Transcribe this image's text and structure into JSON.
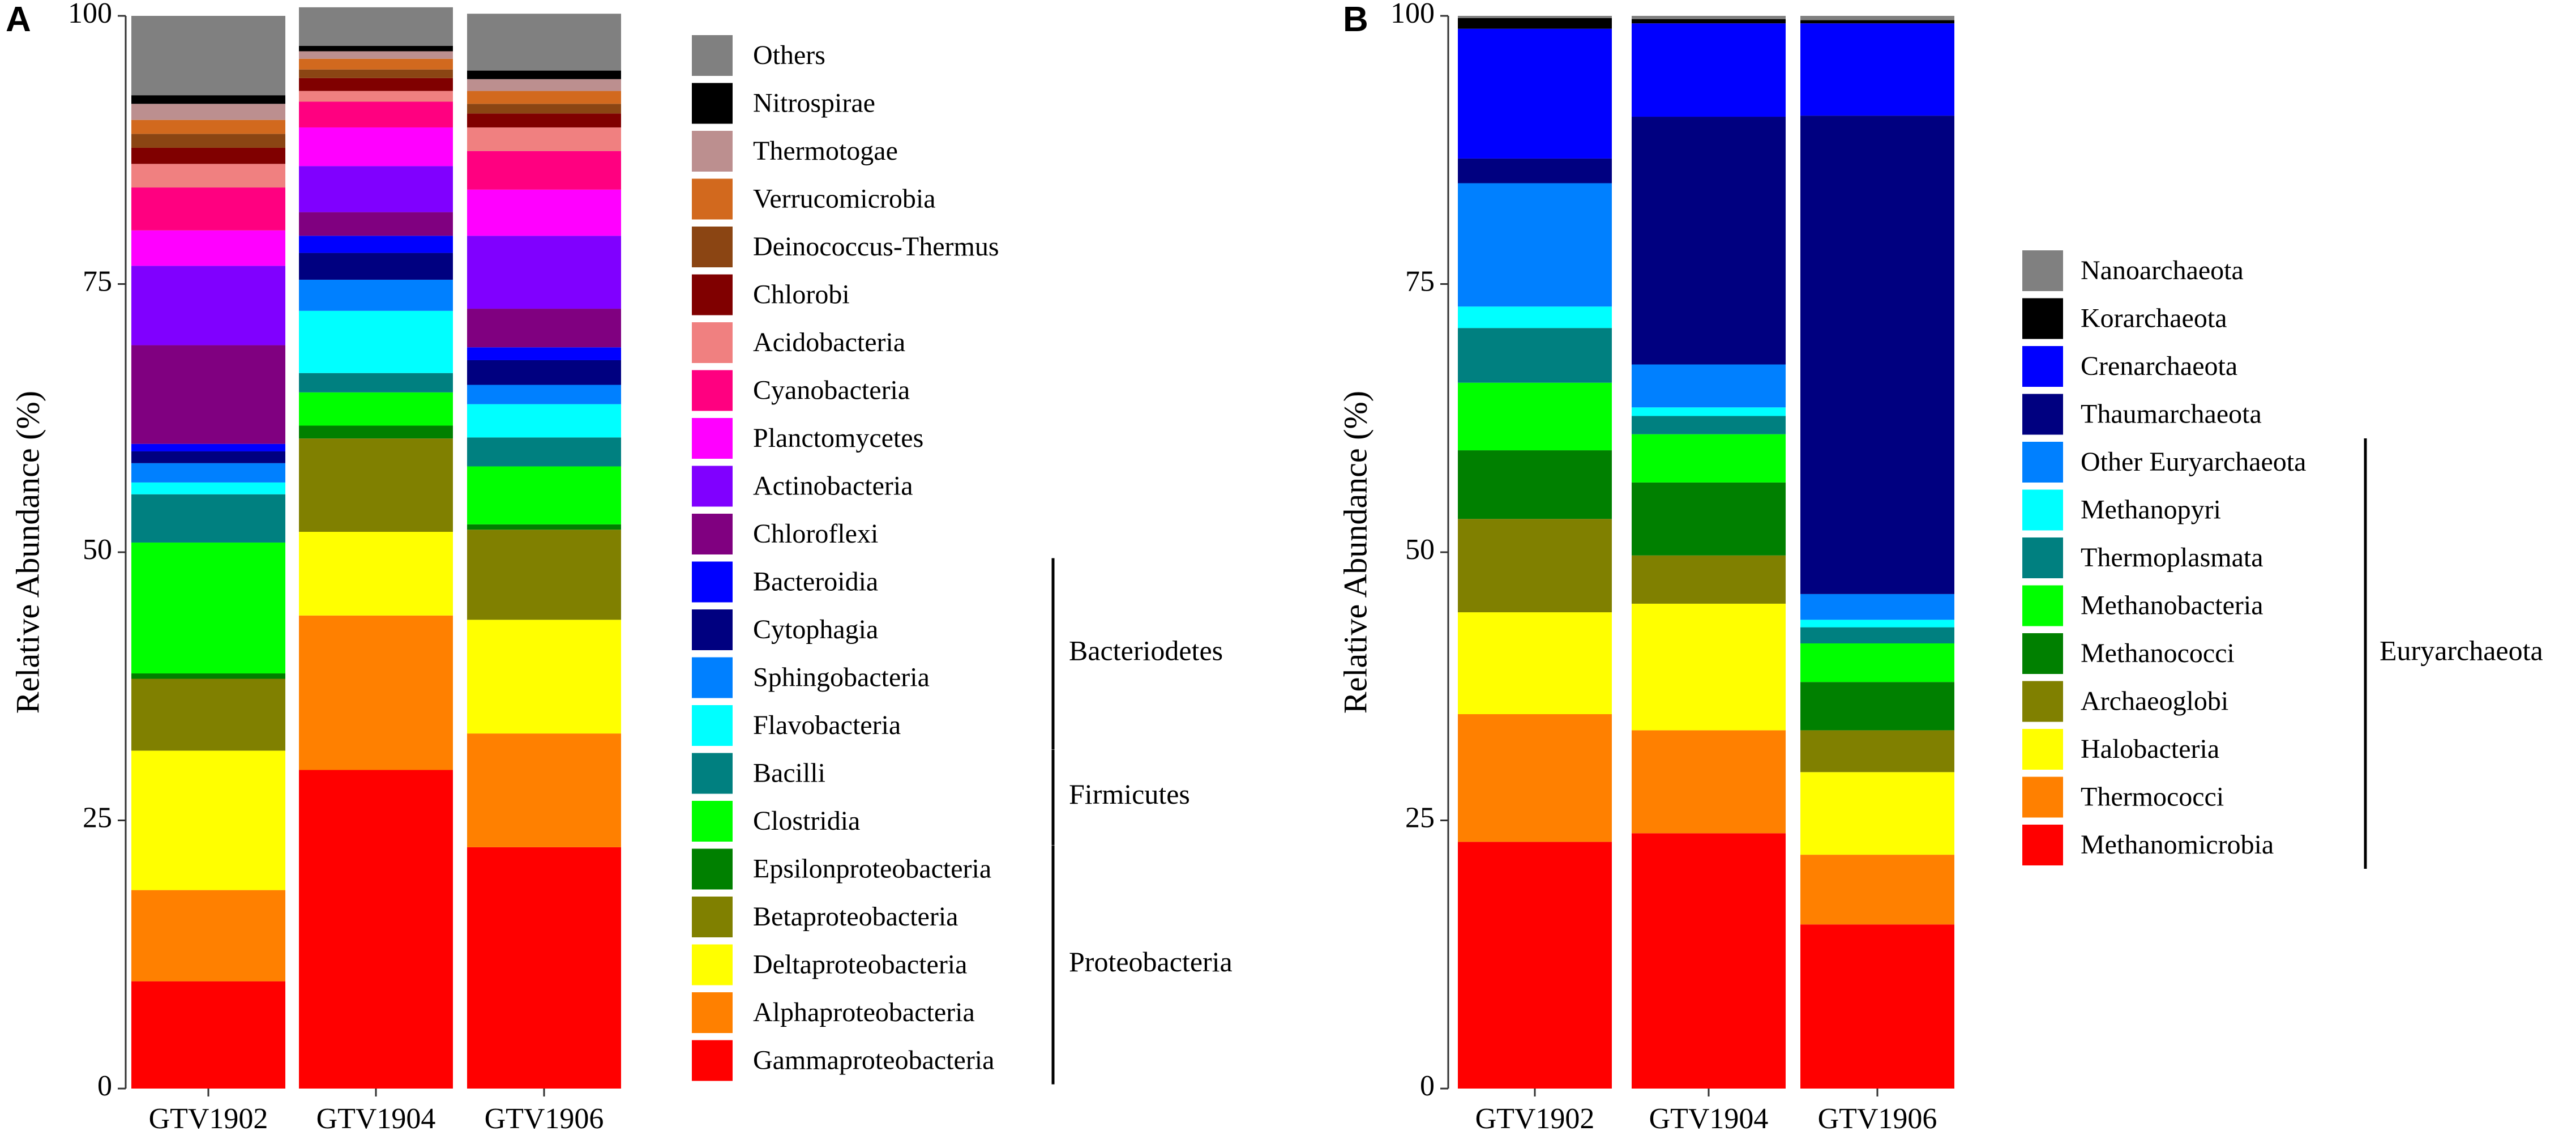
{
  "chart_data": [
    {
      "type": "bar",
      "stacked": true,
      "panel_label": "A",
      "ylabel": "Relative Abundance (%)",
      "ylim": [
        0,
        100
      ],
      "yticks": [
        0,
        25,
        50,
        75,
        100
      ],
      "categories": [
        "GTV1902",
        "GTV1904",
        "GTV1906"
      ],
      "series": [
        {
          "name": "Gammaproteobacteria",
          "color": "#FF0000",
          "values": [
            10,
            29.7,
            22.5
          ]
        },
        {
          "name": "Alphaproteobacteria",
          "color": "#FF8000",
          "values": [
            8.5,
            14.4,
            10.6
          ]
        },
        {
          "name": "Deltaproteobacteria",
          "color": "#FFFF00",
          "values": [
            13,
            7.8,
            10.6
          ]
        },
        {
          "name": "Betaproteobacteria",
          "color": "#808000",
          "values": [
            6.7,
            8.7,
            8.4
          ]
        },
        {
          "name": "Epsilonproteobacteria",
          "color": "#008000",
          "values": [
            0.5,
            1.2,
            0.5
          ]
        },
        {
          "name": "Clostridia",
          "color": "#00FF00",
          "values": [
            12.2,
            3.1,
            5.4
          ]
        },
        {
          "name": "Bacilli",
          "color": "#008080",
          "values": [
            4.5,
            1.8,
            2.7
          ]
        },
        {
          "name": "Flavobacteria",
          "color": "#00FFFF",
          "values": [
            1.1,
            5.8,
            3.1
          ]
        },
        {
          "name": "Sphingobacteria",
          "color": "#0080FF",
          "values": [
            1.8,
            2.9,
            1.8
          ]
        },
        {
          "name": "Cytophagia",
          "color": "#000080",
          "values": [
            1.1,
            2.5,
            2.3
          ]
        },
        {
          "name": "Bacteroidia",
          "color": "#0000FF",
          "values": [
            0.7,
            1.6,
            1.2
          ]
        },
        {
          "name": "Chloroflexi",
          "color": "#800080",
          "values": [
            9.2,
            2.2,
            3.6
          ]
        },
        {
          "name": "Actinobacteria",
          "color": "#8000FF",
          "values": [
            7.4,
            4.3,
            6.8
          ]
        },
        {
          "name": "Planctomycetes",
          "color": "#FF00FF",
          "values": [
            3.3,
            3.6,
            4.3
          ]
        },
        {
          "name": "Cyanobacteria",
          "color": "#FF0080",
          "values": [
            4,
            2.4,
            3.6
          ]
        },
        {
          "name": "Acidobacteria",
          "color": "#F08080",
          "values": [
            2.2,
            1,
            2.2
          ]
        },
        {
          "name": "Chlorobi",
          "color": "#800000",
          "values": [
            1.5,
            1.2,
            1.3
          ]
        },
        {
          "name": "Deinococcus-Thermus",
          "color": "#8B4513",
          "values": [
            1.3,
            0.8,
            0.9
          ]
        },
        {
          "name": "Verrucomicrobia",
          "color": "#D2691E",
          "values": [
            1.3,
            1,
            1.2
          ]
        },
        {
          "name": "Thermotogae",
          "color": "#BC8F8F",
          "values": [
            1.5,
            0.7,
            1.1
          ]
        },
        {
          "name": "Nitrospirae",
          "color": "#000000",
          "values": [
            0.8,
            0.5,
            0.8
          ]
        },
        {
          "name": "Others",
          "color": "#808080",
          "values": [
            7.4,
            3.6,
            5.3
          ]
        }
      ],
      "legend_order": [
        "Others",
        "Nitrospirae",
        "Thermotogae",
        "Verrucomicrobia",
        "Deinococcus-Thermus",
        "Chlorobi",
        "Acidobacteria",
        "Cyanobacteria",
        "Planctomycetes",
        "Actinobacteria",
        "Chloroflexi",
        "Bacteroidia",
        "Cytophagia",
        "Sphingobacteria",
        "Flavobacteria",
        "Bacilli",
        "Clostridia",
        "Epsilonproteobacteria",
        "Betaproteobacteria",
        "Deltaproteobacteria",
        "Alphaproteobacteria",
        "Gammaproteobacteria"
      ],
      "groups": [
        {
          "label": "Bacteriodetes",
          "members": [
            "Bacteroidia",
            "Cytophagia",
            "Sphingobacteria",
            "Flavobacteria"
          ]
        },
        {
          "label": "Firmicutes",
          "members": [
            "Bacilli",
            "Clostridia"
          ]
        },
        {
          "label": "Proteobacteria",
          "members": [
            "Epsilonproteobacteria",
            "Betaproteobacteria",
            "Deltaproteobacteria",
            "Alphaproteobacteria",
            "Gammaproteobacteria"
          ]
        }
      ]
    },
    {
      "type": "bar",
      "stacked": true,
      "panel_label": "B",
      "ylabel": "Relative Abundance (%)",
      "ylim": [
        0,
        100
      ],
      "yticks": [
        0,
        25,
        50,
        75,
        100
      ],
      "categories": [
        "GTV1902",
        "GTV1904",
        "GTV1906"
      ],
      "series": [
        {
          "name": "Methanomicrobia",
          "color": "#FF0000",
          "values": [
            23,
            23.8,
            15.3
          ]
        },
        {
          "name": "Thermococci",
          "color": "#FF8000",
          "values": [
            11.9,
            9.6,
            6.5
          ]
        },
        {
          "name": "Halobacteria",
          "color": "#FFFF00",
          "values": [
            9.5,
            11.8,
            7.7
          ]
        },
        {
          "name": "Archaeoglobi",
          "color": "#808000",
          "values": [
            8.7,
            4.5,
            3.9
          ]
        },
        {
          "name": "Methanococci",
          "color": "#008000",
          "values": [
            6.4,
            6.8,
            4.5
          ]
        },
        {
          "name": "Methanobacteria",
          "color": "#00FF00",
          "values": [
            6.3,
            4.5,
            3.6
          ]
        },
        {
          "name": "Thermoplasmata",
          "color": "#008080",
          "values": [
            5.1,
            1.7,
            1.5
          ]
        },
        {
          "name": "Methanopyri",
          "color": "#00FFFF",
          "values": [
            2,
            0.8,
            0.7
          ]
        },
        {
          "name": "Other Euryarchaeota",
          "color": "#0080FF",
          "values": [
            11.5,
            4,
            2.4
          ]
        },
        {
          "name": "Thaumarchaeota",
          "color": "#000080",
          "values": [
            2.3,
            23.1,
            44.6
          ]
        },
        {
          "name": "Crenarchaeota",
          "color": "#0000FF",
          "values": [
            12.1,
            8.7,
            8.6
          ]
        },
        {
          "name": "Korarchaeota",
          "color": "#000000",
          "values": [
            1,
            0.4,
            0.3
          ]
        },
        {
          "name": "Nanoarchaeota",
          "color": "#808080",
          "values": [
            0.2,
            0.3,
            0.4
          ]
        }
      ],
      "legend_order": [
        "Nanoarchaeota",
        "Korarchaeota",
        "Crenarchaeota",
        "Thaumarchaeota",
        "Other Euryarchaeota",
        "Methanopyri",
        "Thermoplasmata",
        "Methanobacteria",
        "Methanococci",
        "Archaeoglobi",
        "Halobacteria",
        "Thermococci",
        "Methanomicrobia"
      ],
      "groups": [
        {
          "label": "Euryarchaeota",
          "members": [
            "Other Euryarchaeota",
            "Methanopyri",
            "Thermoplasmata",
            "Methanobacteria",
            "Methanococci",
            "Archaeoglobi",
            "Halobacteria",
            "Thermococci",
            "Methanomicrobia"
          ]
        }
      ]
    }
  ]
}
